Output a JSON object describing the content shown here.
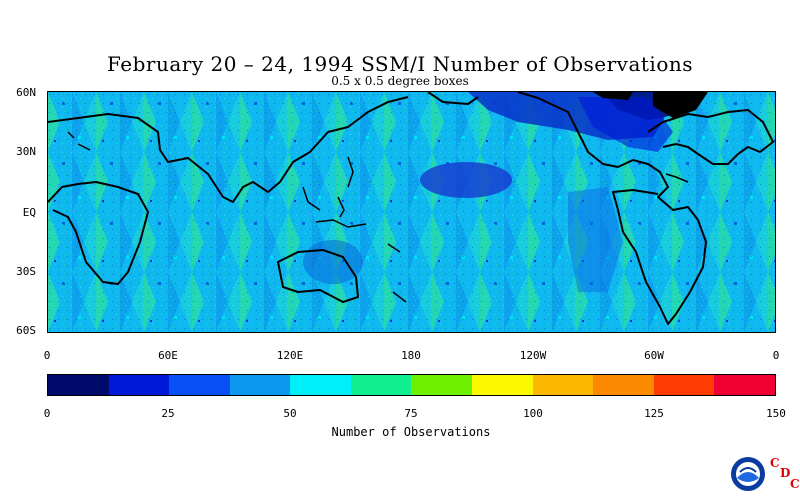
{
  "title": "February 20 – 24, 1994 SSM/I Number of Observations",
  "subtitle": "0.5 x 0.5 degree boxes",
  "map": {
    "lat_labels": [
      "60N",
      "30N",
      "EQ",
      "30S",
      "60S"
    ],
    "lon_labels": [
      "0",
      "60E",
      "120E",
      "180",
      "120W",
      "60W",
      "0"
    ]
  },
  "legend": {
    "title": "Number of Observations",
    "ticks": [
      "0",
      "25",
      "50",
      "75",
      "100",
      "125",
      "150"
    ],
    "colors": [
      "#000a6a",
      "#0018d8",
      "#0850f4",
      "#0c98ee",
      "#00eef8",
      "#10ee90",
      "#6cf000",
      "#fcf800",
      "#fcb800",
      "#fc8a00",
      "#fc3c00",
      "#f00032"
    ]
  },
  "logo": {
    "icon": "noaa-logo",
    "letters": [
      "C",
      "D",
      "C"
    ],
    "accent": "#e00000"
  }
}
